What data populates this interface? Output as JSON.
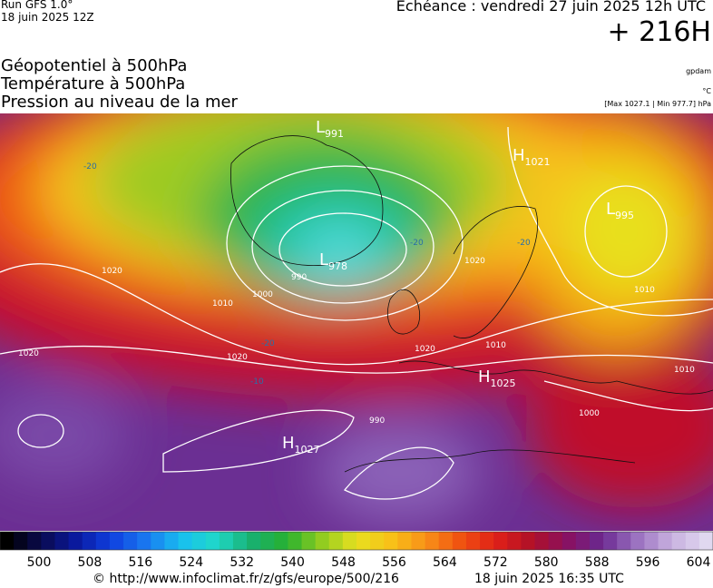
{
  "header": {
    "run": "Run GFS 1.0°",
    "run_date": "18 juin 2025 12Z",
    "forecast": "Echéance : vendredi 27 juin 2025 12h UTC",
    "lead": "+ 216H"
  },
  "titles": [
    "Géopotentiel à 500hPa",
    "Température à 500hPa",
    "Pression au niveau de la mer"
  ],
  "units": {
    "geopotential": "gpdam",
    "temperature": "°C",
    "pressure": "[Max 1027.1 | Min 977.7] hPa"
  },
  "centers": [
    {
      "letter": "L",
      "value": "991"
    },
    {
      "letter": "H",
      "value": "1021"
    },
    {
      "letter": "L",
      "value": "995"
    },
    {
      "letter": "L",
      "value": "978"
    },
    {
      "letter": "H",
      "value": "1025"
    },
    {
      "letter": "H",
      "value": "1027"
    }
  ],
  "isobar_labels": [
    "990",
    "1000",
    "1010",
    "1020",
    "1020",
    "1020",
    "1020",
    "1010",
    "1010",
    "1000",
    "1010",
    "1020",
    "990"
  ],
  "temperature_labels": [
    "-20",
    "-20",
    "-20",
    "-10",
    "-20"
  ],
  "colorbar": {
    "ticks": [
      "500",
      "508",
      "516",
      "524",
      "532",
      "540",
      "548",
      "556",
      "564",
      "572",
      "580",
      "588",
      "596",
      "604"
    ]
  },
  "footer": {
    "source": "© http://www.infoclimat.fr/z/gfs/europe/500/216",
    "generated": "18 juin 2025 16:35 UTC"
  }
}
